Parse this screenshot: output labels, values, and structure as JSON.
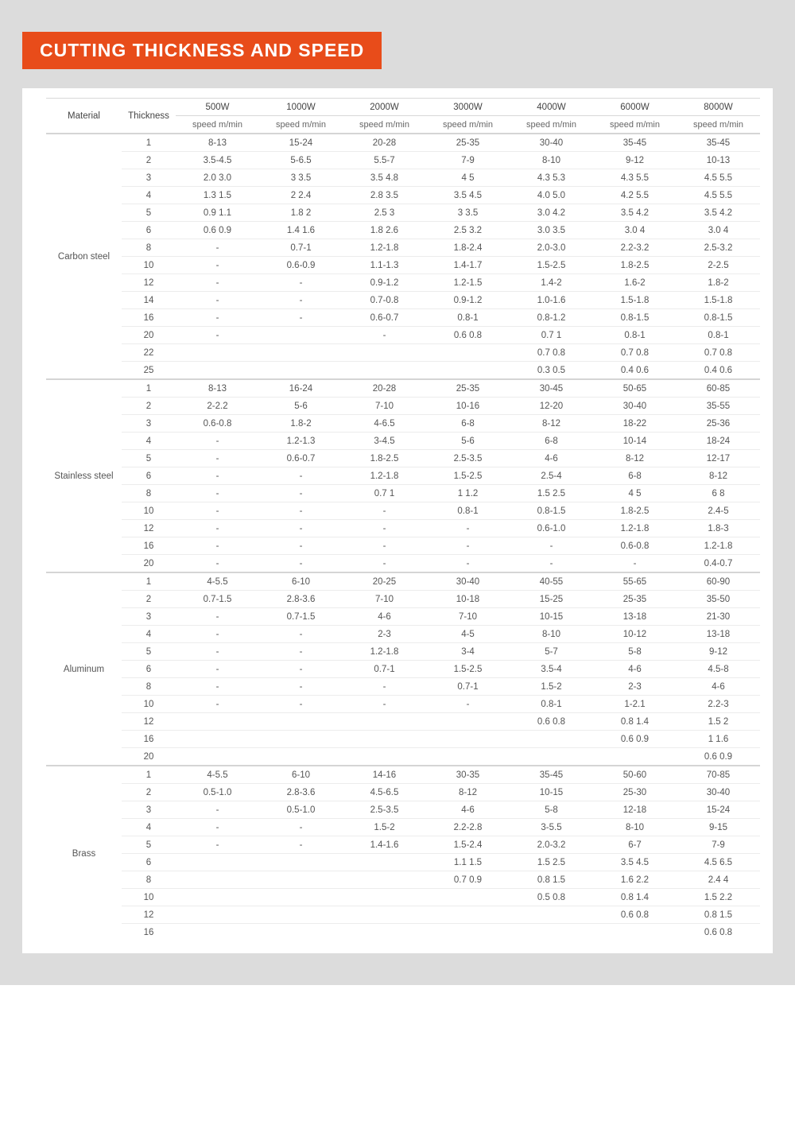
{
  "title": "CUTTING THICKNESS AND SPEED",
  "columns": {
    "material": "Material",
    "thickness": "Thickness",
    "powers": [
      "500W",
      "1000W",
      "2000W",
      "3000W",
      "4000W",
      "6000W",
      "8000W"
    ],
    "unit": "speed m/min"
  },
  "colors": {
    "title_bg": "#e84c1a",
    "title_fg": "#ffffff",
    "page_bg": "#dcdcdc",
    "sheet_bg": "#ffffff",
    "grid": "#ececec",
    "section_grid": "#d5d5d5",
    "text": "#555555"
  },
  "materials": [
    {
      "name": "Carbon steel",
      "rows": [
        {
          "t": "1",
          "v": [
            "8-13",
            "15-24",
            "20-28",
            "25-35",
            "30-40",
            "35-45",
            "35-45"
          ]
        },
        {
          "t": "2",
          "v": [
            "3.5-4.5",
            "5-6.5",
            "5.5-7",
            "7-9",
            "8-10",
            "9-12",
            "10-13"
          ]
        },
        {
          "t": "3",
          "v": [
            "2.0 3.0",
            "3 3.5",
            "3.5 4.8",
            "4 5",
            "4.3 5.3",
            "4.3 5.5",
            "4.5 5.5"
          ]
        },
        {
          "t": "4",
          "v": [
            "1.3 1.5",
            "2 2.4",
            "2.8 3.5",
            "3.5 4.5",
            "4.0 5.0",
            "4.2 5.5",
            "4.5 5.5"
          ]
        },
        {
          "t": "5",
          "v": [
            "0.9 1.1",
            "1.8 2",
            "2.5 3",
            "3 3.5",
            "3.0 4.2",
            "3.5 4.2",
            "3.5 4.2"
          ]
        },
        {
          "t": "6",
          "v": [
            "0.6 0.9",
            "1.4 1.6",
            "1.8 2.6",
            "2.5 3.2",
            "3.0 3.5",
            "3.0 4",
            "3.0 4"
          ]
        },
        {
          "t": "8",
          "v": [
            "-",
            "0.7-1",
            "1.2-1.8",
            "1.8-2.4",
            "2.0-3.0",
            "2.2-3.2",
            "2.5-3.2"
          ]
        },
        {
          "t": "10",
          "v": [
            "-",
            "0.6-0.9",
            "1.1-1.3",
            "1.4-1.7",
            "1.5-2.5",
            "1.8-2.5",
            "2-2.5"
          ]
        },
        {
          "t": "12",
          "v": [
            "-",
            "-",
            "0.9-1.2",
            "1.2-1.5",
            "1.4-2",
            "1.6-2",
            "1.8-2"
          ]
        },
        {
          "t": "14",
          "v": [
            "-",
            "-",
            "0.7-0.8",
            "0.9-1.2",
            "1.0-1.6",
            "1.5-1.8",
            "1.5-1.8"
          ]
        },
        {
          "t": "16",
          "v": [
            "-",
            "-",
            "0.6-0.7",
            "0.8-1",
            "0.8-1.2",
            "0.8-1.5",
            "0.8-1.5"
          ]
        },
        {
          "t": "20",
          "v": [
            "-",
            "",
            "-",
            "0.6 0.8",
            "0.7 1",
            "0.8-1",
            "0.8-1"
          ]
        },
        {
          "t": "22",
          "v": [
            "",
            "",
            "",
            "",
            "0.7 0.8",
            "0.7 0.8",
            "0.7 0.8"
          ]
        },
        {
          "t": "25",
          "v": [
            "",
            "",
            "",
            "",
            "0.3 0.5",
            "0.4 0.6",
            "0.4 0.6"
          ]
        }
      ]
    },
    {
      "name": "Stainless steel",
      "rows": [
        {
          "t": "1",
          "v": [
            "8-13",
            "16-24",
            "20-28",
            "25-35",
            "30-45",
            "50-65",
            "60-85"
          ]
        },
        {
          "t": "2",
          "v": [
            "2-2.2",
            "5-6",
            "7-10",
            "10-16",
            "12-20",
            "30-40",
            "35-55"
          ]
        },
        {
          "t": "3",
          "v": [
            "0.6-0.8",
            "1.8-2",
            "4-6.5",
            "6-8",
            "8-12",
            "18-22",
            "25-36"
          ]
        },
        {
          "t": "4",
          "v": [
            "-",
            "1.2-1.3",
            "3-4.5",
            "5-6",
            "6-8",
            "10-14",
            "18-24"
          ]
        },
        {
          "t": "5",
          "v": [
            "-",
            "0.6-0.7",
            "1.8-2.5",
            "2.5-3.5",
            "4-6",
            "8-12",
            "12-17"
          ]
        },
        {
          "t": "6",
          "v": [
            "-",
            "-",
            "1.2-1.8",
            "1.5-2.5",
            "2.5-4",
            "6-8",
            "8-12"
          ]
        },
        {
          "t": "8",
          "v": [
            "-",
            "-",
            "0.7 1",
            "1 1.2",
            "1.5 2.5",
            "4 5",
            "6 8"
          ]
        },
        {
          "t": "10",
          "v": [
            "-",
            "-",
            "-",
            "0.8-1",
            "0.8-1.5",
            "1.8-2.5",
            "2.4-5"
          ]
        },
        {
          "t": "12",
          "v": [
            "-",
            "-",
            "-",
            "-",
            "0.6-1.0",
            "1.2-1.8",
            "1.8-3"
          ]
        },
        {
          "t": "16",
          "v": [
            "-",
            "-",
            "-",
            "-",
            "-",
            "0.6-0.8",
            "1.2-1.8"
          ]
        },
        {
          "t": "20",
          "v": [
            "-",
            "-",
            "-",
            "-",
            "-",
            "-",
            "0.4-0.7"
          ]
        }
      ]
    },
    {
      "name": "Aluminum",
      "rows": [
        {
          "t": "1",
          "v": [
            "4-5.5",
            "6-10",
            "20-25",
            "30-40",
            "40-55",
            "55-65",
            "60-90"
          ]
        },
        {
          "t": "2",
          "v": [
            "0.7-1.5",
            "2.8-3.6",
            "7-10",
            "10-18",
            "15-25",
            "25-35",
            "35-50"
          ]
        },
        {
          "t": "3",
          "v": [
            "-",
            "0.7-1.5",
            "4-6",
            "7-10",
            "10-15",
            "13-18",
            "21-30"
          ]
        },
        {
          "t": "4",
          "v": [
            "-",
            "-",
            "2-3",
            "4-5",
            "8-10",
            "10-12",
            "13-18"
          ]
        },
        {
          "t": "5",
          "v": [
            "-",
            "-",
            "1.2-1.8",
            "3-4",
            "5-7",
            "5-8",
            "9-12"
          ]
        },
        {
          "t": "6",
          "v": [
            "-",
            "-",
            "0.7-1",
            "1.5-2.5",
            "3.5-4",
            "4-6",
            "4.5-8"
          ]
        },
        {
          "t": "8",
          "v": [
            "-",
            "-",
            "-",
            "0.7-1",
            "1.5-2",
            "2-3",
            "4-6"
          ]
        },
        {
          "t": "10",
          "v": [
            "-",
            "-",
            "-",
            "-",
            "0.8-1",
            "1-2.1",
            "2.2-3"
          ]
        },
        {
          "t": "12",
          "v": [
            "",
            "",
            "",
            "",
            "0.6 0.8",
            "0.8 1.4",
            "1.5 2"
          ]
        },
        {
          "t": "16",
          "v": [
            "",
            "",
            "",
            "",
            "",
            "0.6 0.9",
            "1 1.6"
          ]
        },
        {
          "t": "20",
          "v": [
            "",
            "",
            "",
            "",
            "",
            "",
            "0.6 0.9"
          ]
        }
      ]
    },
    {
      "name": "Brass",
      "rows": [
        {
          "t": "1",
          "v": [
            "4-5.5",
            "6-10",
            "14-16",
            "30-35",
            "35-45",
            "50-60",
            "70-85"
          ]
        },
        {
          "t": "2",
          "v": [
            "0.5-1.0",
            "2.8-3.6",
            "4.5-6.5",
            "8-12",
            "10-15",
            "25-30",
            "30-40"
          ]
        },
        {
          "t": "3",
          "v": [
            "-",
            "0.5-1.0",
            "2.5-3.5",
            "4-6",
            "5-8",
            "12-18",
            "15-24"
          ]
        },
        {
          "t": "4",
          "v": [
            "-",
            "-",
            "1.5-2",
            "2.2-2.8",
            "3-5.5",
            "8-10",
            "9-15"
          ]
        },
        {
          "t": "5",
          "v": [
            "-",
            "-",
            "1.4-1.6",
            "1.5-2.4",
            "2.0-3.2",
            "6-7",
            "7-9"
          ]
        },
        {
          "t": "6",
          "v": [
            "",
            "",
            "",
            "1.1 1.5",
            "1.5 2.5",
            "3.5 4.5",
            "4.5 6.5"
          ]
        },
        {
          "t": "8",
          "v": [
            "",
            "",
            "",
            "0.7 0.9",
            "0.8 1.5",
            "1.6 2.2",
            "2.4 4"
          ]
        },
        {
          "t": "10",
          "v": [
            "",
            "",
            "",
            "",
            "0.5 0.8",
            "0.8 1.4",
            "1.5 2.2"
          ]
        },
        {
          "t": "12",
          "v": [
            "",
            "",
            "",
            "",
            "",
            "0.6 0.8",
            "0.8 1.5"
          ]
        },
        {
          "t": "16",
          "v": [
            "",
            "",
            "",
            "",
            "",
            "",
            "0.6 0.8"
          ]
        }
      ]
    }
  ]
}
